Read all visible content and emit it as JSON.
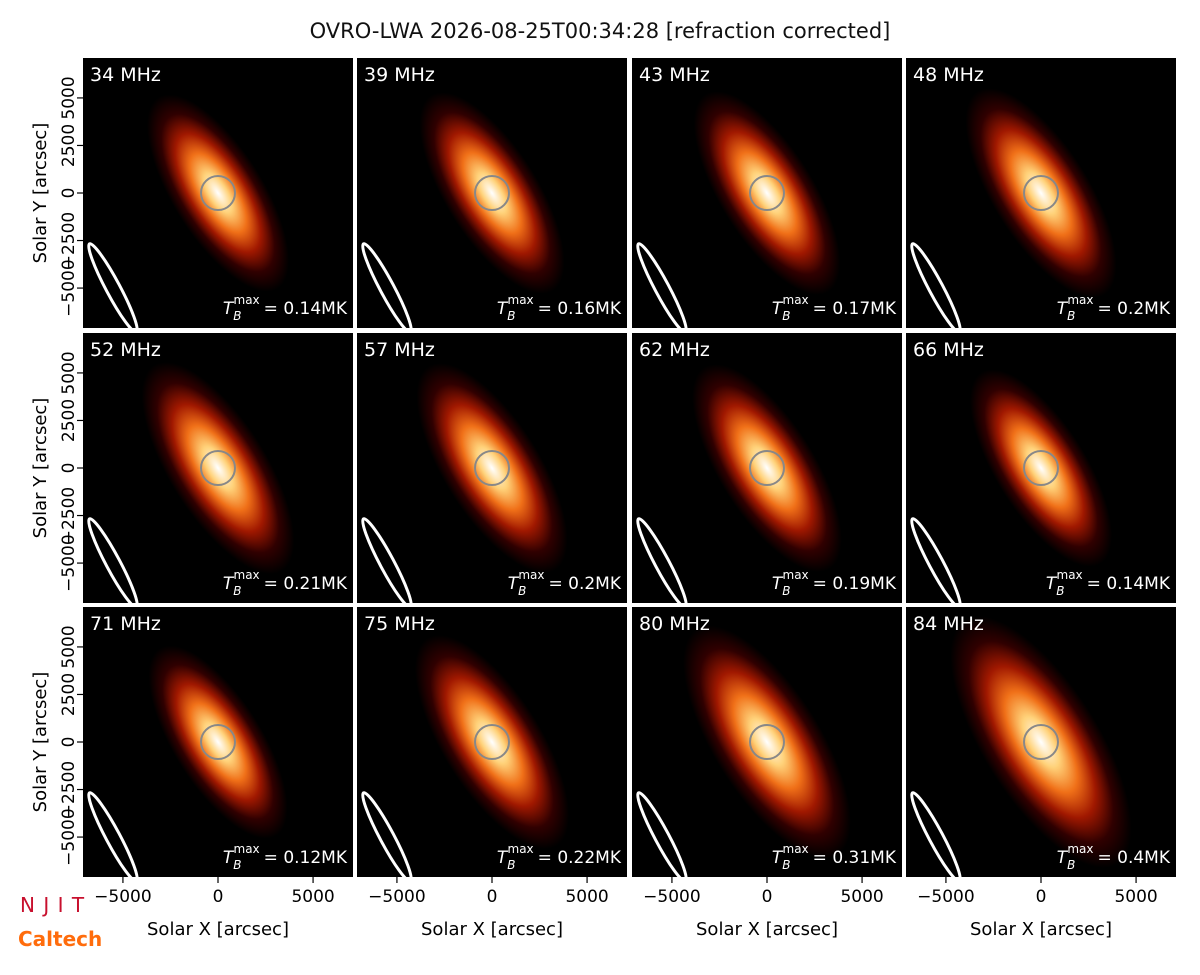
{
  "chart_data": {
    "type": "image",
    "title": "OVRO-LWA 2026-08-25T00:34:28 [refraction corrected]",
    "xlabel": "Solar X [arcsec]",
    "ylabel": "Solar Y [arcsec]",
    "xlim": [
      -7100,
      7100
    ],
    "ylim": [
      -7100,
      7100
    ],
    "xticks": [
      {
        "value": -5000,
        "label": "−5000"
      },
      0,
      5000
    ],
    "yticks": [
      {
        "value": -5000,
        "label": "−5000"
      },
      {
        "value": -2500,
        "label": "−2500"
      },
      0,
      2500,
      5000
    ],
    "tb_symbol": "T",
    "tb_sub": "B",
    "tb_sup": "max",
    "colormap": [
      "#ffffff",
      "#ffd27a",
      "#f07018",
      "#a01800",
      "#300000",
      "#000000"
    ],
    "panels": [
      {
        "label": "34 MHz",
        "tb_max": 0.14,
        "tb_max_label": "= 0.14MK"
      },
      {
        "label": "39 MHz",
        "tb_max": 0.16,
        "tb_max_label": "= 0.16MK"
      },
      {
        "label": "43 MHz",
        "tb_max": 0.17,
        "tb_max_label": "= 0.17MK"
      },
      {
        "label": "48 MHz",
        "tb_max": 0.2,
        "tb_max_label": "= 0.2MK"
      },
      {
        "label": "52 MHz",
        "tb_max": 0.21,
        "tb_max_label": "= 0.21MK"
      },
      {
        "label": "57 MHz",
        "tb_max": 0.2,
        "tb_max_label": "= 0.2MK"
      },
      {
        "label": "62 MHz",
        "tb_max": 0.19,
        "tb_max_label": "= 0.19MK"
      },
      {
        "label": "66 MHz",
        "tb_max": 0.14,
        "tb_max_label": "= 0.14MK"
      },
      {
        "label": "71 MHz",
        "tb_max": 0.12,
        "tb_max_label": "= 0.12MK"
      },
      {
        "label": "75 MHz",
        "tb_max": 0.22,
        "tb_max_label": "= 0.22MK"
      },
      {
        "label": "80 MHz",
        "tb_max": 0.31,
        "tb_max_label": "= 0.31MK"
      },
      {
        "label": "84 MHz",
        "tb_max": 0.4,
        "tb_max_label": "= 0.4MK"
      }
    ]
  },
  "logos": {
    "njit": "N J I T",
    "caltech": "Caltech"
  }
}
